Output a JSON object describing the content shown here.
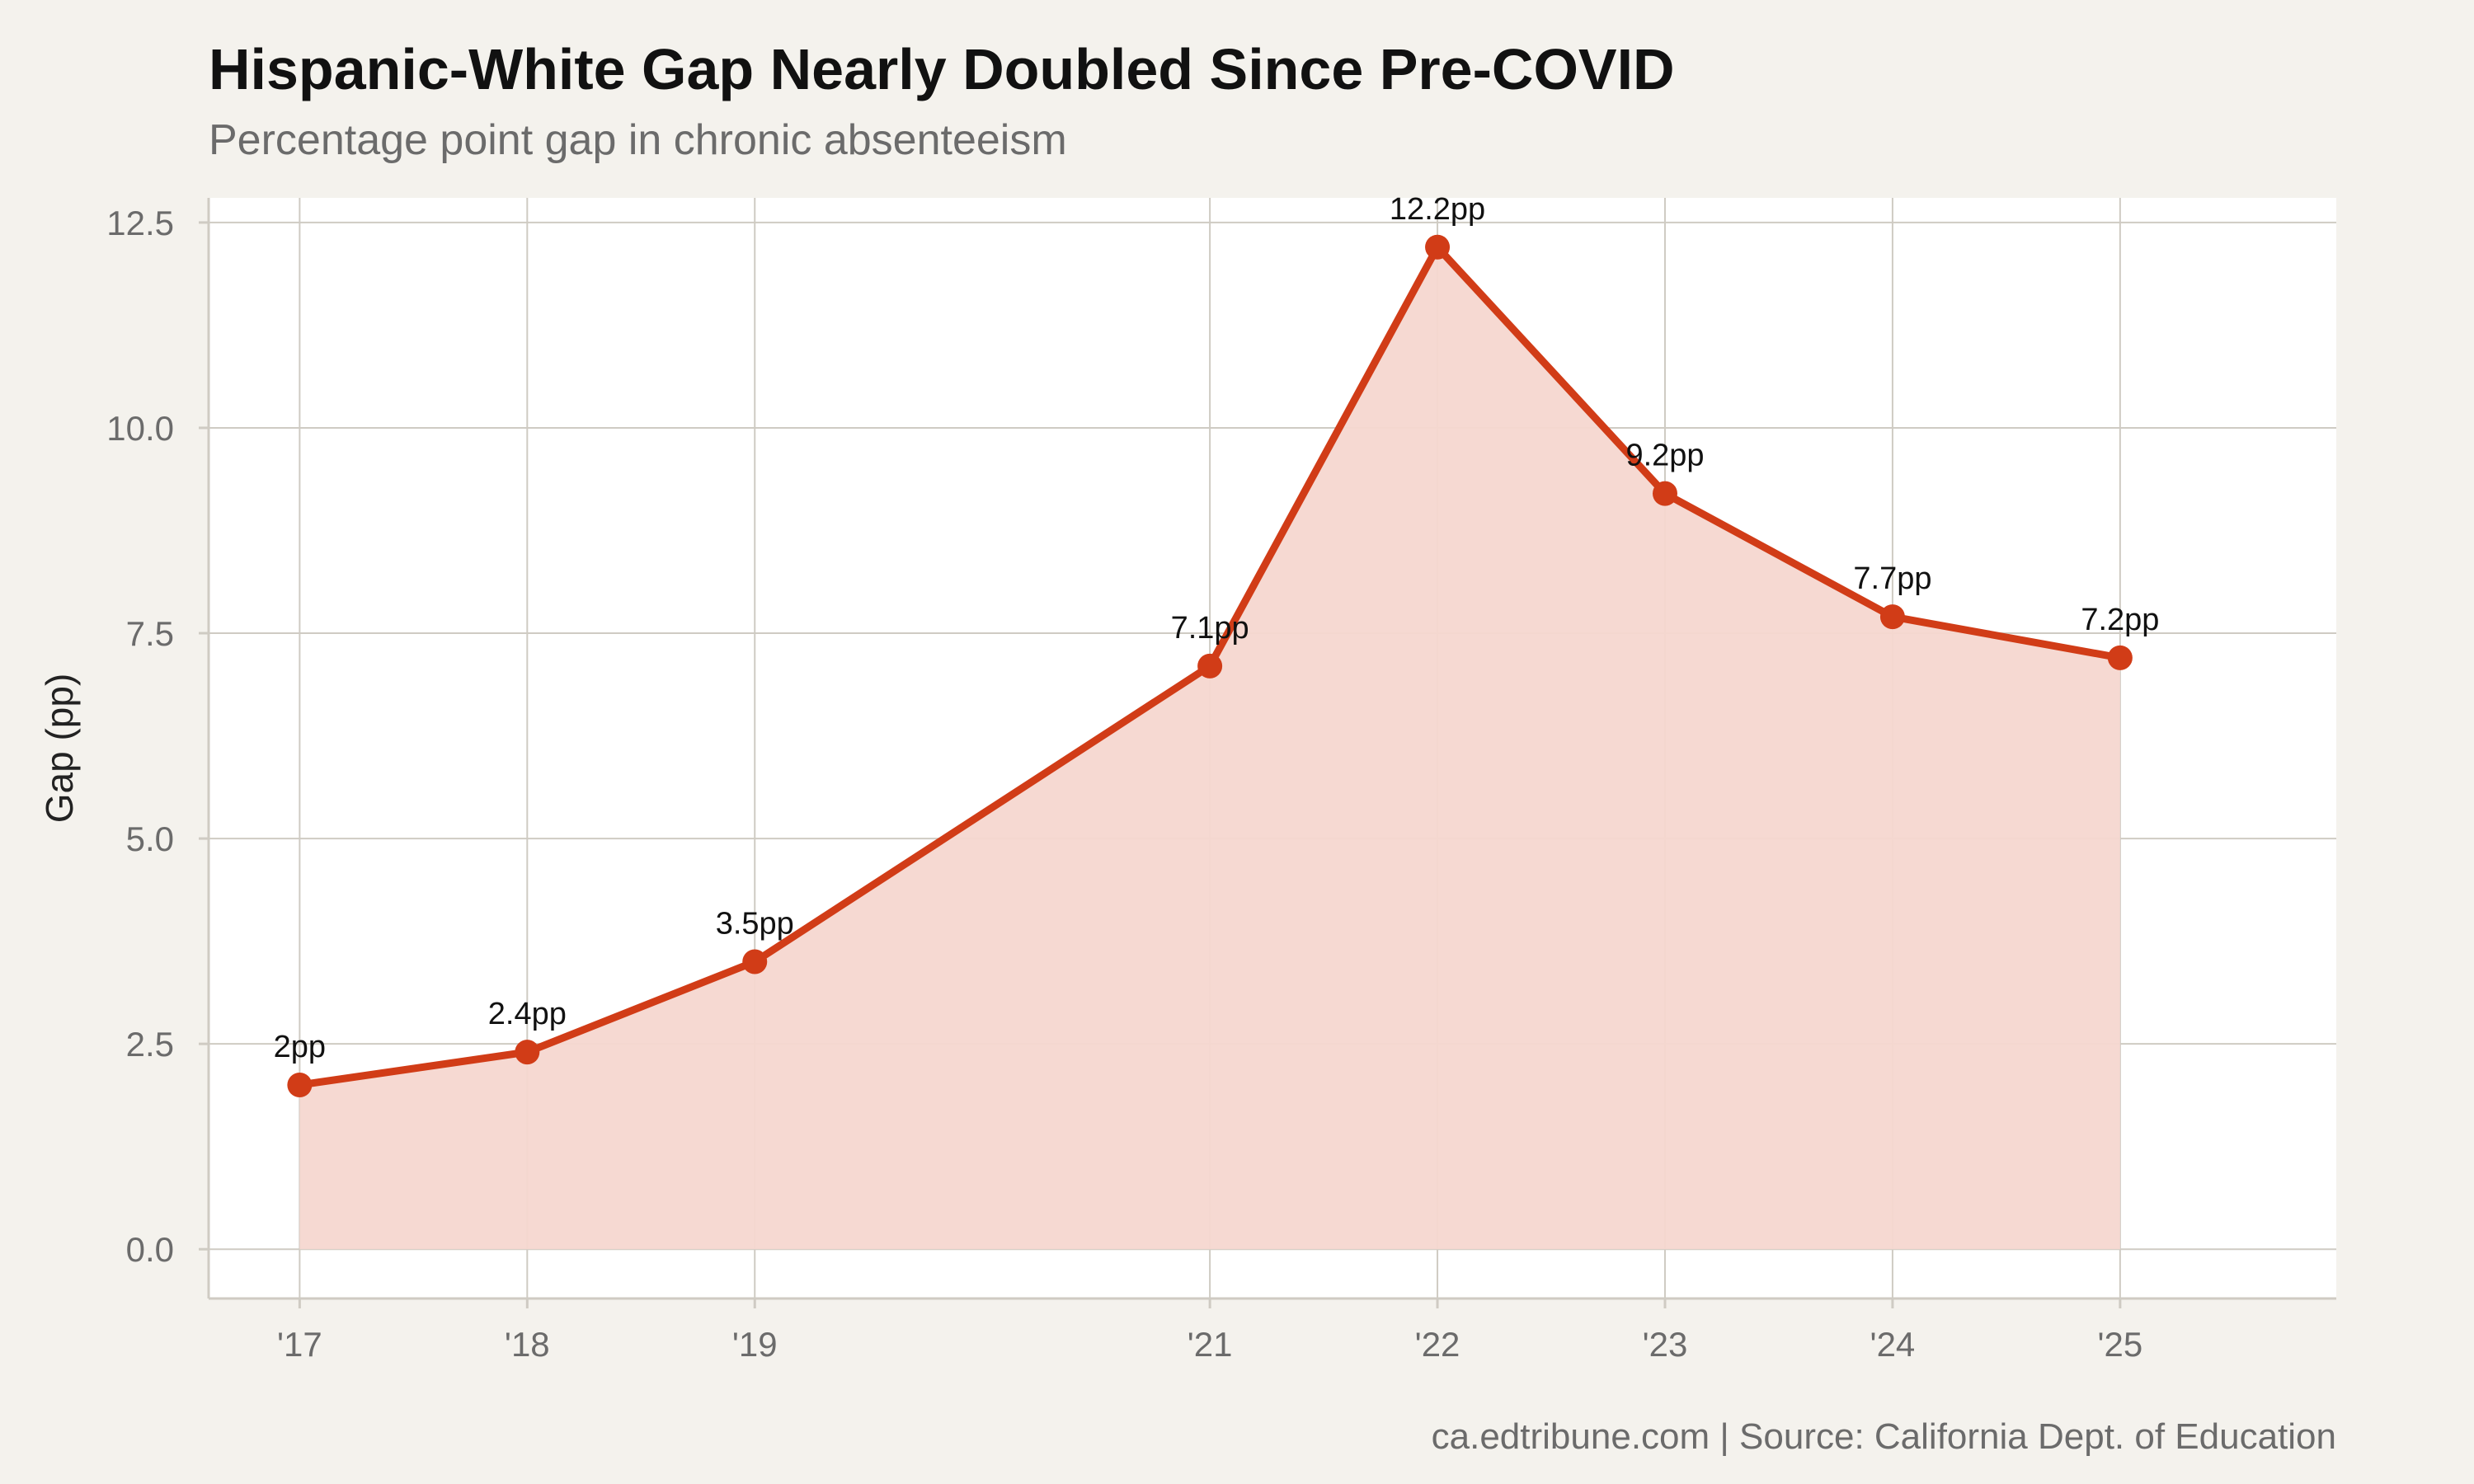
{
  "chart_data": {
    "type": "area",
    "title": "Hispanic-White Gap Nearly Doubled Since Pre-COVID",
    "subtitle": "Percentage point gap in chronic absenteeism",
    "ylabel": "Gap (pp)",
    "xlabel": "",
    "caption": "ca.edtribune.com | Source: California Dept. of Education",
    "x": [
      2017,
      2018,
      2019,
      2021,
      2022,
      2023,
      2024,
      2025
    ],
    "x_tick_labels": [
      "'17",
      "'18",
      "'19",
      "'21",
      "'22",
      "'23",
      "'24",
      "'25"
    ],
    "series": [
      {
        "values": [
          2.0,
          2.4,
          3.5,
          7.1,
          12.2,
          9.2,
          7.7,
          7.2
        ],
        "data_labels": [
          "2pp",
          "2.4pp",
          "3.5pp",
          "7.1pp",
          "12.2pp",
          "9.2pp",
          "7.7pp",
          "7.2pp"
        ]
      }
    ],
    "y_ticks": [
      0.0,
      2.5,
      5.0,
      7.5,
      10.0,
      12.5
    ],
    "y_tick_labels": [
      "0.0",
      "2.5",
      "5.0",
      "7.5",
      "10.0",
      "12.5"
    ],
    "xlim": [
      2016.6,
      2025.95
    ],
    "ylim": [
      -0.6,
      12.8
    ],
    "grid": true,
    "legend": "none",
    "colors": {
      "line": "#d13c17",
      "fill": "#f5d7d0",
      "panel": "#ffffff",
      "background": "#f4f2ed",
      "grid": "#cfcbc3"
    }
  }
}
